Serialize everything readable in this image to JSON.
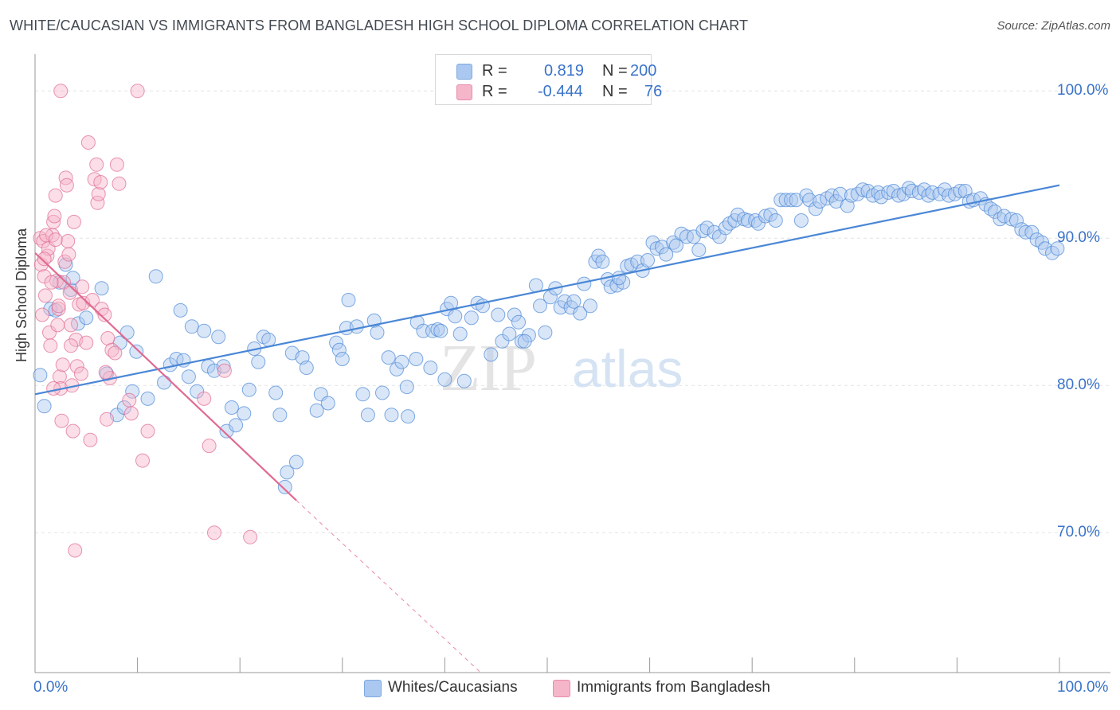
{
  "title": "WHITE/CAUCASIAN VS IMMIGRANTS FROM BANGLADESH HIGH SCHOOL DIPLOMA CORRELATION CHART",
  "source": "Source: ZipAtlas.com",
  "watermark": {
    "zip": "ZIP",
    "atlas": "atlas"
  },
  "legend": {
    "rows": [
      {
        "r_label": "R =",
        "r_value": "0.819",
        "n_label": "N =",
        "n_value": "200",
        "color": "#aac8f0"
      },
      {
        "r_label": "R =",
        "r_value": "-0.444",
        "n_label": "N =",
        "n_value": "76",
        "color": "#f6b6c9"
      }
    ]
  },
  "bottom_legend": [
    {
      "label": "Whites/Caucasians",
      "color": "#aac8f0"
    },
    {
      "label": "Immigrants from Bangladesh",
      "color": "#f6b6c9"
    }
  ],
  "chart_data": {
    "type": "scatter",
    "title": "WHITE/CAUCASIAN VS IMMIGRANTS FROM BANGLADESH HIGH SCHOOL DIPLOMA CORRELATION CHART",
    "xlabel": "",
    "ylabel": "High School Diploma",
    "xlim": [
      0,
      100
    ],
    "ylim": [
      60.5,
      102.5
    ],
    "x_tick_labels": [
      "0.0%",
      "100.0%"
    ],
    "y_ticks": [
      70,
      80,
      90,
      100
    ],
    "y_tick_labels": [
      "70.0%",
      "80.0%",
      "90.0%",
      "100.0%"
    ],
    "grid": true,
    "series": [
      {
        "name": "Whites/Caucasians",
        "color": "#4a87d6",
        "fill": "rgba(170,200,240,0.45)",
        "trend": {
          "x0": 0,
          "y0": 79.4,
          "x1": 100,
          "y1": 93.6
        },
        "points": [
          [
            0.5,
            80.7
          ],
          [
            0.9,
            78.6
          ],
          [
            1.5,
            85.2
          ],
          [
            2.0,
            85.1
          ],
          [
            2.4,
            87.0
          ],
          [
            3.0,
            88.2
          ],
          [
            3.5,
            86.5
          ],
          [
            3.7,
            87.3
          ],
          [
            4.2,
            84.2
          ],
          [
            5.0,
            84.6
          ],
          [
            6.5,
            86.6
          ],
          [
            7.0,
            80.8
          ],
          [
            8.0,
            78.0
          ],
          [
            8.3,
            82.9
          ],
          [
            9.0,
            83.6
          ],
          [
            9.9,
            82.3
          ],
          [
            9.5,
            79.6
          ],
          [
            11.0,
            79.1
          ],
          [
            12.6,
            80.2
          ],
          [
            11.8,
            87.4
          ],
          [
            13.2,
            81.4
          ],
          [
            13.8,
            81.8
          ],
          [
            14.5,
            81.7
          ],
          [
            14.2,
            85.1
          ],
          [
            15.3,
            84.0
          ],
          [
            15.8,
            79.6
          ],
          [
            16.5,
            83.7
          ],
          [
            16.9,
            81.3
          ],
          [
            17.5,
            81.0
          ],
          [
            17.9,
            83.3
          ],
          [
            18.4,
            81.3
          ],
          [
            18.7,
            76.9
          ],
          [
            19.2,
            78.5
          ],
          [
            19.6,
            77.3
          ],
          [
            20.4,
            78.1
          ],
          [
            20.9,
            79.7
          ],
          [
            21.4,
            82.5
          ],
          [
            22.3,
            83.3
          ],
          [
            22.8,
            83.1
          ],
          [
            23.5,
            79.5
          ],
          [
            23.9,
            78.0
          ],
          [
            24.6,
            74.1
          ],
          [
            25.5,
            74.8
          ],
          [
            24.4,
            73.1
          ],
          [
            25.1,
            82.2
          ],
          [
            26.1,
            81.9
          ],
          [
            26.5,
            81.2
          ],
          [
            27.5,
            78.3
          ],
          [
            27.9,
            79.4
          ],
          [
            28.6,
            78.8
          ],
          [
            29.4,
            82.9
          ],
          [
            29.7,
            82.4
          ],
          [
            30.4,
            83.9
          ],
          [
            30.6,
            85.8
          ],
          [
            31.4,
            84.0
          ],
          [
            32.0,
            79.4
          ],
          [
            32.5,
            78.0
          ],
          [
            33.1,
            84.4
          ],
          [
            33.4,
            83.6
          ],
          [
            33.9,
            79.5
          ],
          [
            34.5,
            81.9
          ],
          [
            34.8,
            78.0
          ],
          [
            35.3,
            81.1
          ],
          [
            35.8,
            81.6
          ],
          [
            36.3,
            79.9
          ],
          [
            36.4,
            77.9
          ],
          [
            37.2,
            81.8
          ],
          [
            37.3,
            84.3
          ],
          [
            37.9,
            83.7
          ],
          [
            38.6,
            81.2
          ],
          [
            38.8,
            83.7
          ],
          [
            39.3,
            83.8
          ],
          [
            39.6,
            83.7
          ],
          [
            40.2,
            85.2
          ],
          [
            40.6,
            85.6
          ],
          [
            41.0,
            84.7
          ],
          [
            41.5,
            83.5
          ],
          [
            41.9,
            80.3
          ],
          [
            42.6,
            84.6
          ],
          [
            43.2,
            85.6
          ],
          [
            43.7,
            85.4
          ],
          [
            44.5,
            82.1
          ],
          [
            45.2,
            84.8
          ],
          [
            45.6,
            83.0
          ],
          [
            46.3,
            83.5
          ],
          [
            46.8,
            84.8
          ],
          [
            47.2,
            84.3
          ],
          [
            47.5,
            83.0
          ],
          [
            48.2,
            83.4
          ],
          [
            48.9,
            86.8
          ],
          [
            49.3,
            85.4
          ],
          [
            49.8,
            83.6
          ],
          [
            50.3,
            86.0
          ],
          [
            50.8,
            86.6
          ],
          [
            51.3,
            85.3
          ],
          [
            51.7,
            85.7
          ],
          [
            52.3,
            85.3
          ],
          [
            52.6,
            85.7
          ],
          [
            53.2,
            84.9
          ],
          [
            53.6,
            86.9
          ],
          [
            54.2,
            85.4
          ],
          [
            54.7,
            88.4
          ],
          [
            55.0,
            88.8
          ],
          [
            55.4,
            88.4
          ],
          [
            55.9,
            87.2
          ],
          [
            56.2,
            86.7
          ],
          [
            56.8,
            86.8
          ],
          [
            57.4,
            87.0
          ],
          [
            57.8,
            88.1
          ],
          [
            58.2,
            88.2
          ],
          [
            58.8,
            88.4
          ],
          [
            59.3,
            87.8
          ],
          [
            59.8,
            88.5
          ],
          [
            60.3,
            89.7
          ],
          [
            60.7,
            89.3
          ],
          [
            61.2,
            89.4
          ],
          [
            61.6,
            88.9
          ],
          [
            62.3,
            89.7
          ],
          [
            62.6,
            89.5
          ],
          [
            63.1,
            90.3
          ],
          [
            63.6,
            90.1
          ],
          [
            64.3,
            90.1
          ],
          [
            64.8,
            89.2
          ],
          [
            65.2,
            90.5
          ],
          [
            65.6,
            90.7
          ],
          [
            66.3,
            90.4
          ],
          [
            66.8,
            90.1
          ],
          [
            67.4,
            90.7
          ],
          [
            67.8,
            91.0
          ],
          [
            68.3,
            91.2
          ],
          [
            68.6,
            91.6
          ],
          [
            69.2,
            91.3
          ],
          [
            69.6,
            91.2
          ],
          [
            70.3,
            91.2
          ],
          [
            70.6,
            91.0
          ],
          [
            71.3,
            91.5
          ],
          [
            71.8,
            91.6
          ],
          [
            72.3,
            91.2
          ],
          [
            72.8,
            92.6
          ],
          [
            73.3,
            92.6
          ],
          [
            73.8,
            92.6
          ],
          [
            74.3,
            92.6
          ],
          [
            74.8,
            91.2
          ],
          [
            75.3,
            92.9
          ],
          [
            75.6,
            92.6
          ],
          [
            76.2,
            92.0
          ],
          [
            76.6,
            92.5
          ],
          [
            77.3,
            92.7
          ],
          [
            77.8,
            92.9
          ],
          [
            78.2,
            92.5
          ],
          [
            78.6,
            93.0
          ],
          [
            79.3,
            92.2
          ],
          [
            79.7,
            92.9
          ],
          [
            80.3,
            93.0
          ],
          [
            80.8,
            93.3
          ],
          [
            81.3,
            93.2
          ],
          [
            81.8,
            92.9
          ],
          [
            82.3,
            93.1
          ],
          [
            82.6,
            92.8
          ],
          [
            83.3,
            93.1
          ],
          [
            83.8,
            93.2
          ],
          [
            84.3,
            92.9
          ],
          [
            84.8,
            93.0
          ],
          [
            85.3,
            93.4
          ],
          [
            85.6,
            93.2
          ],
          [
            86.3,
            93.1
          ],
          [
            86.8,
            93.3
          ],
          [
            87.2,
            92.9
          ],
          [
            87.6,
            93.1
          ],
          [
            88.3,
            93.0
          ],
          [
            88.8,
            93.3
          ],
          [
            89.2,
            92.9
          ],
          [
            89.8,
            93.0
          ],
          [
            90.3,
            93.2
          ],
          [
            90.8,
            93.2
          ],
          [
            91.2,
            92.5
          ],
          [
            91.6,
            92.6
          ],
          [
            92.3,
            92.7
          ],
          [
            92.8,
            92.3
          ],
          [
            93.3,
            92.0
          ],
          [
            93.7,
            91.8
          ],
          [
            94.2,
            91.3
          ],
          [
            94.6,
            91.5
          ],
          [
            95.3,
            91.3
          ],
          [
            95.8,
            91.2
          ],
          [
            96.3,
            90.6
          ],
          [
            96.7,
            90.4
          ],
          [
            97.3,
            90.4
          ],
          [
            97.8,
            89.9
          ],
          [
            98.3,
            89.7
          ],
          [
            98.6,
            89.3
          ],
          [
            99.3,
            89.0
          ],
          [
            99.8,
            89.3
          ],
          [
            8.7,
            78.5
          ],
          [
            15.0,
            80.6
          ],
          [
            21.8,
            81.6
          ],
          [
            30.0,
            81.8
          ],
          [
            40.0,
            80.4
          ],
          [
            47.8,
            83.0
          ],
          [
            57.0,
            87.3
          ]
        ]
      },
      {
        "name": "Immigrants from Bangladesh",
        "color": "#e06a91",
        "fill": "rgba(246,182,201,0.45)",
        "trend": {
          "x0": 0,
          "y0": 89.0,
          "x1": 25.5,
          "y1": 72.2
        },
        "trend_dashed": {
          "x0": 25.5,
          "y0": 72.2,
          "x1": 43.5,
          "y1": 60.5
        },
        "points": [
          [
            0.5,
            90.0
          ],
          [
            0.6,
            88.2
          ],
          [
            0.8,
            89.8
          ],
          [
            0.9,
            87.4
          ],
          [
            1.0,
            86.1
          ],
          [
            1.2,
            88.8
          ],
          [
            1.3,
            89.3
          ],
          [
            1.4,
            83.6
          ],
          [
            1.5,
            82.7
          ],
          [
            1.7,
            90.2
          ],
          [
            1.8,
            91.1
          ],
          [
            1.9,
            91.5
          ],
          [
            2.0,
            92.9
          ],
          [
            2.1,
            87.1
          ],
          [
            2.2,
            84.1
          ],
          [
            2.3,
            85.2
          ],
          [
            2.4,
            80.6
          ],
          [
            2.5,
            79.8
          ],
          [
            2.6,
            77.6
          ],
          [
            2.7,
            81.4
          ],
          [
            2.8,
            87.0
          ],
          [
            2.9,
            88.4
          ],
          [
            3.0,
            94.1
          ],
          [
            3.1,
            93.6
          ],
          [
            3.2,
            89.8
          ],
          [
            3.3,
            88.9
          ],
          [
            3.4,
            86.3
          ],
          [
            3.5,
            84.1
          ],
          [
            3.6,
            80.0
          ],
          [
            3.7,
            76.9
          ],
          [
            3.8,
            91.1
          ],
          [
            4.0,
            83.1
          ],
          [
            4.1,
            81.3
          ],
          [
            4.3,
            85.5
          ],
          [
            4.5,
            80.8
          ],
          [
            4.7,
            85.6
          ],
          [
            5.0,
            82.9
          ],
          [
            5.2,
            96.5
          ],
          [
            5.4,
            76.3
          ],
          [
            5.6,
            85.8
          ],
          [
            5.8,
            94.0
          ],
          [
            6.0,
            95.0
          ],
          [
            6.1,
            92.4
          ],
          [
            6.2,
            93.0
          ],
          [
            6.4,
            93.8
          ],
          [
            6.5,
            85.2
          ],
          [
            6.8,
            84.8
          ],
          [
            7.0,
            77.7
          ],
          [
            7.1,
            83.2
          ],
          [
            7.3,
            80.5
          ],
          [
            7.5,
            82.4
          ],
          [
            7.8,
            82.2
          ],
          [
            8.0,
            95.0
          ],
          [
            8.2,
            93.7
          ],
          [
            9.2,
            79.0
          ],
          [
            9.4,
            78.1
          ],
          [
            10.5,
            74.9
          ],
          [
            11.0,
            76.9
          ],
          [
            16.5,
            79.1
          ],
          [
            17.0,
            75.9
          ],
          [
            17.5,
            70.0
          ],
          [
            18.5,
            81.0
          ],
          [
            21.0,
            69.7
          ],
          [
            3.9,
            68.8
          ],
          [
            2.5,
            100.0
          ],
          [
            10.0,
            100.0
          ],
          [
            1.1,
            90.2
          ],
          [
            1.6,
            87.0
          ],
          [
            2.3,
            85.4
          ],
          [
            0.7,
            84.8
          ],
          [
            3.5,
            82.7
          ],
          [
            4.6,
            86.7
          ],
          [
            6.9,
            80.9
          ],
          [
            1.8,
            79.8
          ],
          [
            0.9,
            88.6
          ],
          [
            2.0,
            89.9
          ]
        ]
      }
    ]
  }
}
